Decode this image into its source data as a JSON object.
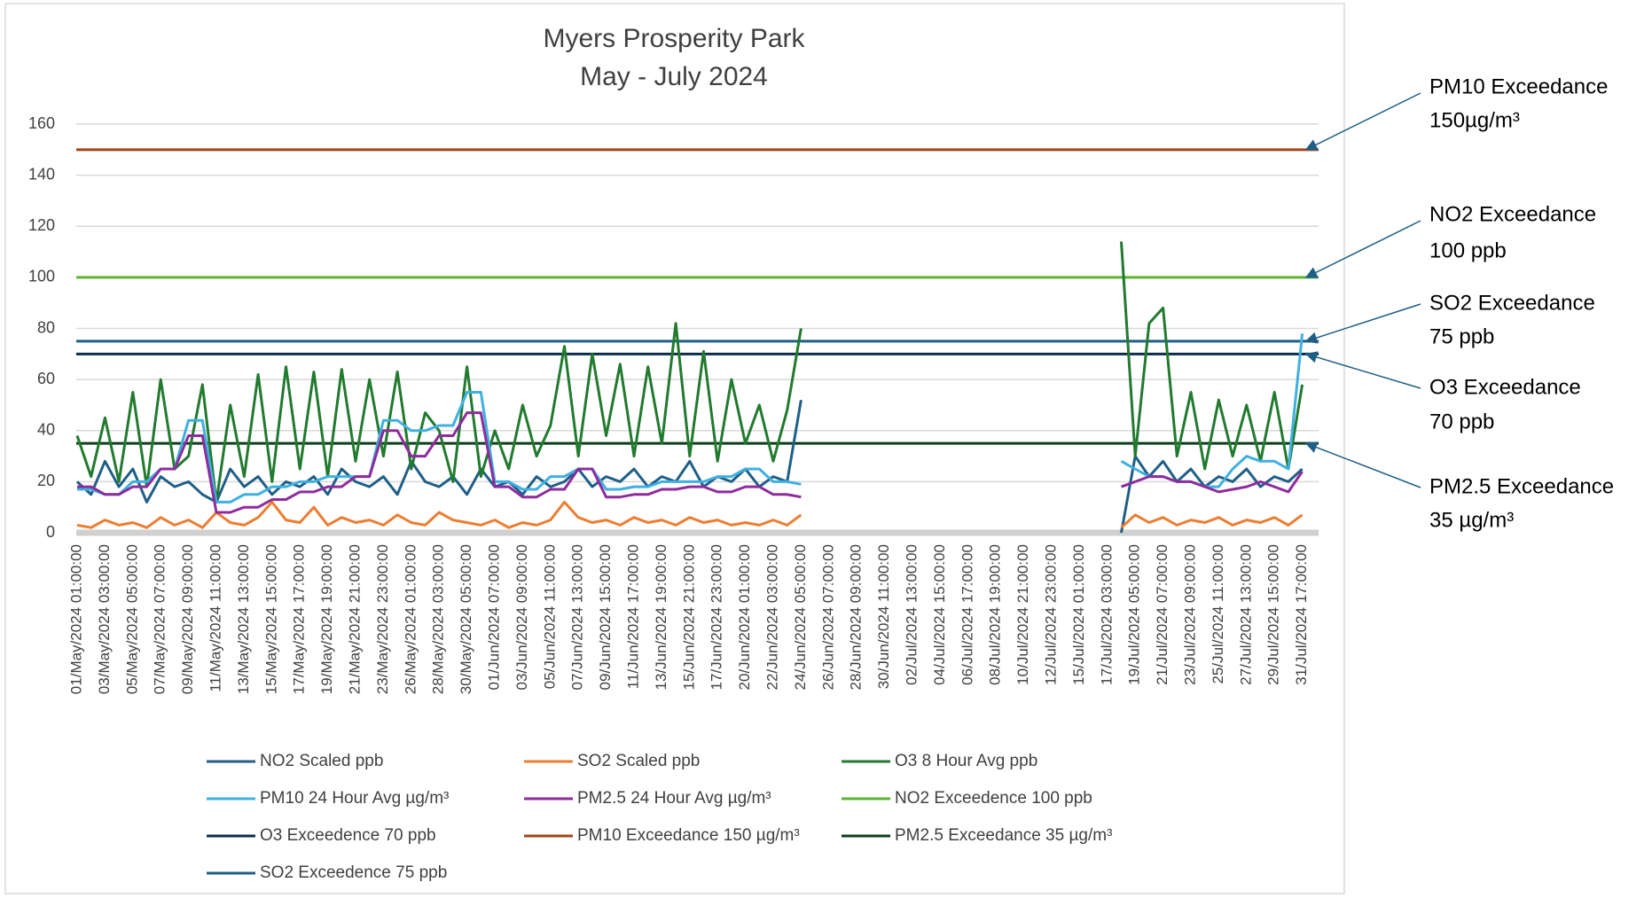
{
  "chart_data": {
    "type": "line",
    "title": [
      "Myers Prosperity Park",
      "May - July 2024"
    ],
    "categories": [
      "01/May/2024 01:00:00",
      null,
      "03/May/2024 03:00:00",
      null,
      "05/May/2024 05:00:00",
      null,
      "07/May/2024 07:00:00",
      null,
      "09/May/2024 09:00:00",
      null,
      "11/May/2024 11:00:00",
      null,
      "13/May/2024 13:00:00",
      null,
      "15/May/2024 15:00:00",
      null,
      "17/May/2024 17:00:00",
      null,
      "19/May/2024 19:00:00",
      null,
      "21/May/2024 21:00:00",
      null,
      "23/May/2024 23:00:00",
      null,
      "26/May/2024 01:00:00",
      null,
      "28/May/2024 03:00:00",
      null,
      "30/May/2024 05:00:00",
      null,
      "01/Jun/2024 07:00:00",
      null,
      "03/Jun/2024 09:00:00",
      null,
      "05/Jun/2024 11:00:00",
      null,
      "07/Jun/2024 13:00:00",
      null,
      "09/Jun/2024 15:00:00",
      null,
      "11/Jun/2024 17:00:00",
      null,
      "13/Jun/2024 19:00:00",
      null,
      "15/Jun/2024 21:00:00",
      null,
      "17/Jun/2024 23:00:00",
      null,
      "20/Jun/2024 01:00:00",
      null,
      "22/Jun/2024 03:00:00",
      null,
      "24/Jun/2024 05:00:00",
      null,
      "26/Jun/2024 07:00:00",
      null,
      "28/Jun/2024 09:00:00",
      null,
      "30/Jun/2024 11:00:00",
      null,
      "02/Jul/2024 13:00:00",
      null,
      "04/Jul/2024 15:00:00",
      null,
      "06/Jul/2024 17:00:00",
      null,
      "08/Jul/2024 19:00:00",
      null,
      "10/Jul/2024 21:00:00",
      null,
      "12/Jul/2024 23:00:00",
      null,
      "15/Jul/2024 01:00:00",
      null,
      "17/Jul/2024 03:00:00",
      null,
      "19/Jul/2024 05:00:00",
      null,
      "21/Jul/2024 07:00:00",
      null,
      "23/Jul/2024 09:00:00",
      null,
      "25/Jul/2024 11:00:00",
      null,
      "27/Jul/2024 13:00:00",
      null,
      "29/Jul/2024 15:00:00",
      null,
      "31/Jul/2024 17:00:00",
      null
    ],
    "series": [
      {
        "name": "NO2 Scaled ppb",
        "color": "#1f5f87",
        "values": [
          20,
          15,
          28,
          18,
          25,
          12,
          22,
          18,
          20,
          15,
          12,
          25,
          18,
          22,
          15,
          20,
          18,
          22,
          15,
          25,
          20,
          18,
          22,
          15,
          28,
          20,
          18,
          22,
          15,
          25,
          18,
          20,
          15,
          22,
          18,
          20,
          25,
          18,
          22,
          20,
          25,
          18,
          22,
          20,
          28,
          18,
          22,
          20,
          25,
          18,
          22,
          20,
          52,
          null,
          null,
          null,
          null,
          null,
          null,
          null,
          null,
          null,
          null,
          null,
          null,
          null,
          null,
          null,
          null,
          null,
          null,
          null,
          null,
          null,
          null,
          0,
          30,
          22,
          28,
          20,
          25,
          18,
          22,
          20,
          25,
          18,
          22,
          20,
          25,
          null
        ]
      },
      {
        "name": "SO2 Scaled ppb",
        "color": "#ed7d31",
        "values": [
          3,
          2,
          5,
          3,
          4,
          2,
          6,
          3,
          5,
          2,
          8,
          4,
          3,
          6,
          12,
          5,
          4,
          10,
          3,
          6,
          4,
          5,
          3,
          7,
          4,
          3,
          8,
          5,
          4,
          3,
          5,
          2,
          4,
          3,
          5,
          12,
          6,
          4,
          5,
          3,
          6,
          4,
          5,
          3,
          6,
          4,
          5,
          3,
          4,
          3,
          5,
          3,
          7,
          null,
          null,
          null,
          null,
          null,
          null,
          null,
          null,
          null,
          null,
          null,
          null,
          null,
          null,
          null,
          null,
          null,
          null,
          null,
          null,
          null,
          null,
          2,
          7,
          4,
          6,
          3,
          5,
          4,
          6,
          3,
          5,
          4,
          6,
          3,
          7,
          null
        ]
      },
      {
        "name": "O3 8 Hour Avg ppb",
        "color": "#217a2e",
        "values": [
          38,
          22,
          45,
          20,
          55,
          18,
          60,
          25,
          30,
          58,
          12,
          50,
          22,
          62,
          20,
          65,
          25,
          63,
          22,
          64,
          28,
          60,
          30,
          63,
          25,
          47,
          40,
          20,
          65,
          22,
          40,
          25,
          50,
          30,
          42,
          73,
          30,
          70,
          38,
          66,
          30,
          65,
          35,
          82,
          30,
          71,
          28,
          60,
          35,
          50,
          28,
          48,
          80,
          null,
          null,
          null,
          null,
          null,
          null,
          null,
          null,
          null,
          null,
          null,
          null,
          null,
          null,
          null,
          null,
          null,
          null,
          null,
          null,
          null,
          null,
          114,
          30,
          82,
          88,
          30,
          55,
          25,
          52,
          30,
          50,
          28,
          55,
          25,
          58,
          null
        ]
      },
      {
        "name": "PM10 24 Hour Avg µg/m³",
        "color": "#3fb0e0",
        "values": [
          17,
          17,
          15,
          15,
          20,
          20,
          25,
          25,
          44,
          44,
          12,
          12,
          15,
          15,
          18,
          18,
          20,
          20,
          22,
          22,
          22,
          22,
          44,
          44,
          40,
          40,
          42,
          42,
          55,
          55,
          20,
          20,
          17,
          17,
          22,
          22,
          25,
          25,
          17,
          17,
          18,
          18,
          20,
          20,
          20,
          20,
          22,
          22,
          25,
          25,
          20,
          20,
          19,
          null,
          null,
          null,
          null,
          null,
          null,
          null,
          null,
          null,
          null,
          null,
          null,
          null,
          null,
          null,
          null,
          null,
          null,
          null,
          null,
          null,
          null,
          28,
          25,
          22,
          22,
          20,
          20,
          18,
          18,
          25,
          30,
          28,
          28,
          25,
          78,
          null
        ]
      },
      {
        "name": "PM2.5 24 Hour Avg µg/m³",
        "color": "#8e2c9c",
        "values": [
          18,
          18,
          15,
          15,
          18,
          18,
          25,
          25,
          38,
          38,
          8,
          8,
          10,
          10,
          13,
          13,
          16,
          16,
          18,
          18,
          22,
          22,
          40,
          40,
          30,
          30,
          38,
          38,
          47,
          47,
          18,
          18,
          14,
          14,
          17,
          17,
          25,
          25,
          14,
          14,
          15,
          15,
          17,
          17,
          18,
          18,
          16,
          16,
          18,
          18,
          15,
          15,
          14,
          null,
          null,
          null,
          null,
          null,
          null,
          null,
          null,
          null,
          null,
          null,
          null,
          null,
          null,
          null,
          null,
          null,
          null,
          null,
          null,
          null,
          null,
          18,
          20,
          22,
          22,
          20,
          20,
          18,
          16,
          17,
          18,
          20,
          18,
          16,
          24,
          null
        ]
      }
    ],
    "reference_lines": [
      {
        "name": "NO2 Exceedence 100 ppb",
        "color": "#5cb531",
        "value": 100
      },
      {
        "name": "O3 Exceedence 70 ppb",
        "color": "#0d2d4a",
        "value": 70
      },
      {
        "name": "PM10 Exceedance 150 µg/m³",
        "color": "#a0451a",
        "value": 150
      },
      {
        "name": "PM2.5 Exceedance 35 µg/m³",
        "color": "#0f3d1c",
        "value": 35
      },
      {
        "name": "SO2 Exceedence 75 ppb",
        "color": "#1f5f87",
        "value": 75
      }
    ],
    "annotations": [
      {
        "lines": [
          "PM10 Exceedance",
          "150µg/m³"
        ]
      },
      {
        "lines": [
          "NO2 Exceedance",
          "100 ppb"
        ]
      },
      {
        "lines": [
          "SO2 Exceedance",
          "75 ppb"
        ]
      },
      {
        "lines": [
          "O3 Exceedance",
          "70 ppb"
        ]
      },
      {
        "lines": [
          "PM2.5 Exceedance",
          "35 µg/m³"
        ]
      }
    ],
    "ylim": [
      0,
      160
    ],
    "yticks": [
      0,
      20,
      40,
      60,
      80,
      100,
      120,
      140,
      160
    ],
    "grid": true
  }
}
